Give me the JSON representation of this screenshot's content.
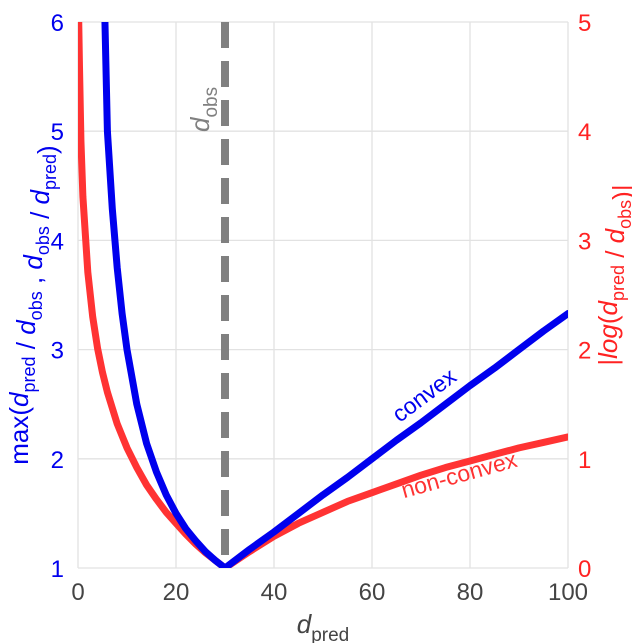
{
  "chart_data": {
    "type": "line",
    "title": "",
    "xlabel": "d",
    "xlabel_sub": "pred",
    "xlim": [
      0,
      100
    ],
    "x_ticks": [
      0,
      20,
      40,
      60,
      80,
      100
    ],
    "ylabel_left": {
      "parts": [
        {
          "t": "max(",
          "style": "normal"
        },
        {
          "t": "d",
          "style": "italic"
        },
        {
          "t": "pred",
          "style": "sub"
        },
        {
          "t": " / ",
          "style": "normal"
        },
        {
          "t": "d",
          "style": "italic"
        },
        {
          "t": "obs",
          "style": "sub"
        },
        {
          "t": " ,  ",
          "style": "normal"
        },
        {
          "t": "d",
          "style": "italic"
        },
        {
          "t": "obs",
          "style": "sub"
        },
        {
          "t": " / ",
          "style": "normal"
        },
        {
          "t": "d",
          "style": "italic"
        },
        {
          "t": "pred",
          "style": "sub"
        },
        {
          "t": ")",
          "style": "normal"
        }
      ]
    },
    "ylabel_right": {
      "parts": [
        {
          "t": "|",
          "style": "normal"
        },
        {
          "t": "log",
          "style": "italic"
        },
        {
          "t": "(",
          "style": "normal"
        },
        {
          "t": "d",
          "style": "italic"
        },
        {
          "t": "pred",
          "style": "sub"
        },
        {
          "t": "  /  ",
          "style": "normal"
        },
        {
          "t": "d",
          "style": "italic"
        },
        {
          "t": "obs",
          "style": "sub"
        },
        {
          "t": ")|",
          "style": "normal"
        }
      ]
    },
    "ylim_left": [
      1,
      6
    ],
    "ylim_right": [
      0,
      5
    ],
    "y_ticks_left": [
      1,
      2,
      3,
      4,
      5,
      6
    ],
    "y_ticks_right": [
      0,
      1,
      2,
      3,
      4,
      5
    ],
    "grid": true,
    "d_obs": 30,
    "d_obs_label": {
      "main": "d",
      "sub": "obs"
    },
    "series": [
      {
        "name": "convex",
        "axis": "left",
        "color": "#0000ee",
        "x": [
          5.5,
          6,
          7,
          8,
          9,
          10,
          12,
          14,
          16,
          18,
          20,
          22,
          24,
          26,
          28,
          30,
          35,
          40,
          45,
          50,
          55,
          60,
          65,
          70,
          75,
          80,
          85,
          90,
          95,
          100
        ],
        "y": [
          6.0,
          5.0,
          4.29,
          3.75,
          3.33,
          3.0,
          2.5,
          2.14,
          1.88,
          1.67,
          1.5,
          1.36,
          1.25,
          1.15,
          1.07,
          1.0,
          1.17,
          1.33,
          1.5,
          1.67,
          1.83,
          2.0,
          2.17,
          2.33,
          2.5,
          2.67,
          2.83,
          3.0,
          3.17,
          3.33
        ]
      },
      {
        "name": "non-convex",
        "axis": "right",
        "color": "#ff3333",
        "x": [
          0.15,
          0.3,
          0.6,
          1,
          2,
          3,
          4,
          5,
          6,
          8,
          10,
          12,
          14,
          16,
          18,
          20,
          22,
          24,
          26,
          28,
          30,
          35,
          40,
          45,
          50,
          55,
          60,
          65,
          70,
          75,
          80,
          85,
          90,
          95,
          100
        ],
        "y": [
          5.0,
          4.6,
          3.91,
          3.4,
          2.71,
          2.3,
          2.01,
          1.79,
          1.61,
          1.32,
          1.1,
          0.92,
          0.76,
          0.63,
          0.51,
          0.41,
          0.31,
          0.22,
          0.14,
          0.07,
          0.0,
          0.15,
          0.29,
          0.41,
          0.51,
          0.61,
          0.69,
          0.77,
          0.85,
          0.92,
          0.98,
          1.04,
          1.1,
          1.15,
          1.2
        ]
      }
    ],
    "annotations": [
      {
        "text": "convex",
        "color": "#0000ee",
        "series": "convex"
      },
      {
        "text": "non-convex",
        "color": "#ff3333",
        "series": "non-convex"
      }
    ]
  }
}
